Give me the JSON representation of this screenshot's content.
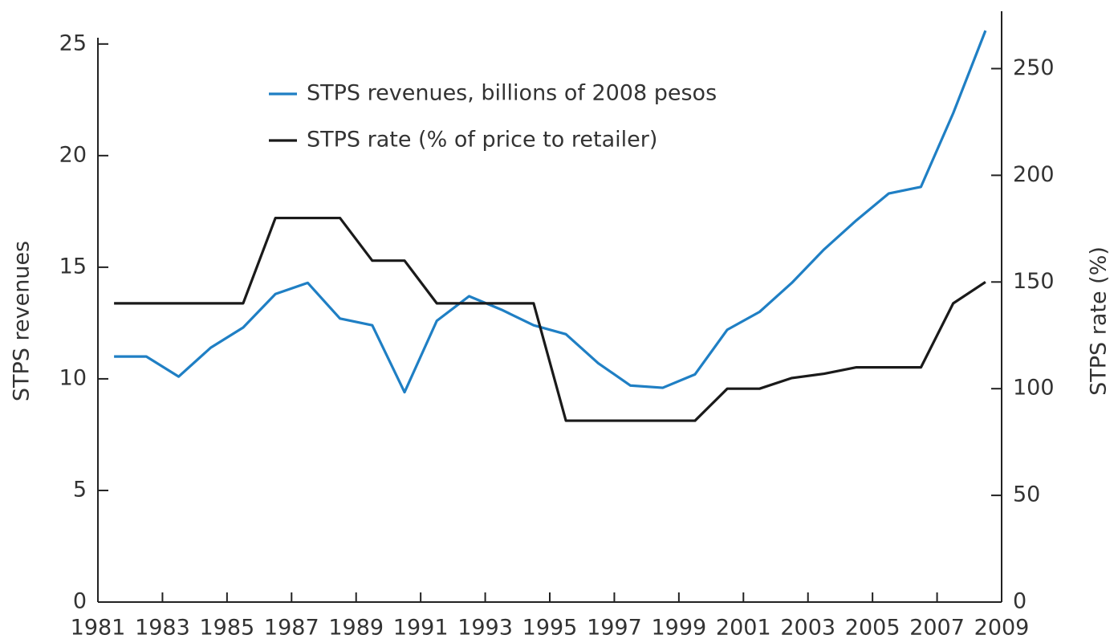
{
  "chart_data": {
    "type": "line",
    "y_label": "STPS revenues",
    "y2_label": "STPS rate (%)",
    "x": [
      1981.5,
      1982.5,
      1983.5,
      1984.5,
      1985.5,
      1986.5,
      1987.5,
      1988.5,
      1989.5,
      1990.5,
      1991.5,
      1992.5,
      1993.5,
      1994.5,
      1995.5,
      1996.5,
      1997.5,
      1998.5,
      1999.5,
      2000.5,
      2001.5,
      2002.5,
      2003.5,
      2004.5,
      2005.5,
      2006.5,
      2007.5,
      2008.5
    ],
    "series": [
      {
        "name": "STPS revenues, billions of 2008 pesos",
        "color": "#1f7fc4",
        "axis": "y",
        "values": [
          11.0,
          11.0,
          10.1,
          11.4,
          12.3,
          13.8,
          14.3,
          12.7,
          12.4,
          9.4,
          12.6,
          13.7,
          13.1,
          12.4,
          12.0,
          10.7,
          9.7,
          9.6,
          10.2,
          12.2,
          13.0,
          14.3,
          15.8,
          17.1,
          18.3,
          18.6,
          21.9,
          25.6
        ]
      },
      {
        "name": "STPS rate (% of price to retailer)",
        "color": "#1a1a1a",
        "axis": "y2",
        "values": [
          140,
          140,
          140,
          140,
          140,
          180,
          180,
          180,
          160,
          160,
          140,
          140,
          140,
          140,
          85,
          85,
          85,
          85,
          85,
          100,
          100,
          105,
          107,
          110,
          110,
          110,
          140,
          150
        ]
      }
    ],
    "xlim": [
      1981,
      2009
    ],
    "xticks": [
      1981,
      1983,
      1985,
      1987,
      1989,
      1991,
      1993,
      1995,
      1997,
      1999,
      2001,
      2003,
      2005,
      2007,
      2009
    ],
    "ylim": [
      0,
      26
    ],
    "yticks": [
      0,
      5,
      10,
      15,
      20,
      25
    ],
    "y2lim": [
      0,
      272
    ],
    "y2ticks": [
      0,
      50,
      100,
      150,
      200,
      250
    ],
    "grid": false,
    "legend": "upper left"
  }
}
